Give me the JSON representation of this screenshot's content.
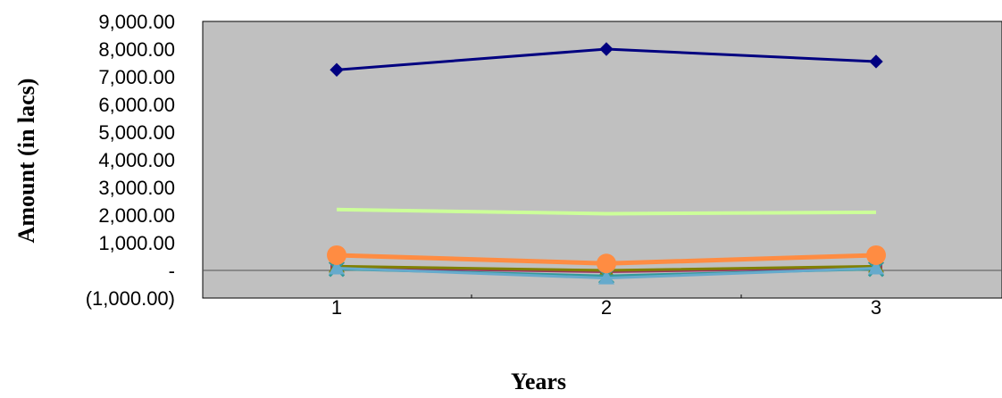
{
  "chart_data": {
    "type": "line",
    "title": "",
    "xlabel": "Years",
    "ylabel": "Amount (in lacs)",
    "categories": [
      "1",
      "2",
      "3"
    ],
    "ylim": [
      -1000,
      9000
    ],
    "y_ticks": [
      -1000,
      0,
      1000,
      2000,
      3000,
      4000,
      5000,
      6000,
      7000,
      8000,
      9000
    ],
    "y_tick_labels": [
      "(1,000.00)",
      "-",
      "1,000.00",
      "2,000.00",
      "3,000.00",
      "4,000.00",
      "5,000.00",
      "6,000.00",
      "7,000.00",
      "8,000.00",
      "9,000.00"
    ],
    "grid": false,
    "legend": "none",
    "plot_background": "#c0c0c0",
    "series": [
      {
        "values": [
          7250,
          8000,
          7550
        ],
        "color": "#000080",
        "marker": "diamond"
      },
      {
        "values": [
          2200,
          2050,
          2100
        ],
        "color": "#ccff99",
        "marker": "none"
      },
      {
        "values": [
          550,
          250,
          550
        ],
        "color": "#ff8c42",
        "marker": "circle"
      },
      {
        "values": [
          150,
          0,
          150
        ],
        "color": "#808000",
        "marker": "triangle"
      },
      {
        "values": [
          100,
          -50,
          100
        ],
        "color": "#993366",
        "marker": "square"
      },
      {
        "values": [
          50,
          -200,
          50
        ],
        "color": "#339999",
        "marker": "x"
      },
      {
        "values": [
          80,
          -280,
          80
        ],
        "color": "#66aacc",
        "marker": "triangle"
      }
    ]
  }
}
